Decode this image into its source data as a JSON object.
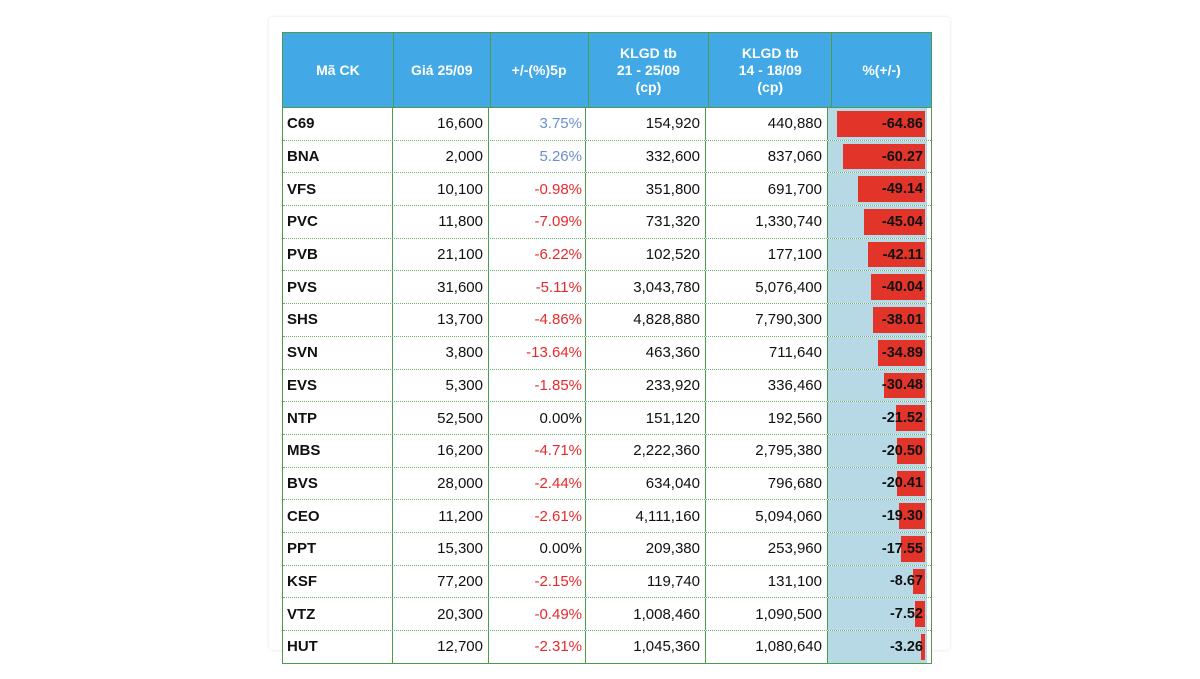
{
  "chart_data": {
    "type": "table",
    "columns": [
      "Mã CK",
      "Giá 25/09",
      "+/-(%)5p",
      "KLGD tb\n21 - 25/09\n(cp)",
      "KLGD tb\n14 - 18/09\n(cp)",
      "%(+/-)"
    ],
    "rows": [
      {
        "code": "C69",
        "price": "16,600",
        "chg5": "3.75%",
        "vol1": "154,920",
        "vol2": "440,880",
        "pct": "-64.86",
        "pct_value": -64.86,
        "chg_color": "#6a8fd0"
      },
      {
        "code": "BNA",
        "price": "2,000",
        "chg5": "5.26%",
        "vol1": "332,600",
        "vol2": "837,060",
        "pct": "-60.27",
        "pct_value": -60.27,
        "chg_color": "#6a8fd0"
      },
      {
        "code": "VFS",
        "price": "10,100",
        "chg5": "-0.98%",
        "vol1": "351,800",
        "vol2": "691,700",
        "pct": "-49.14",
        "pct_value": -49.14,
        "chg_color": "#e8292b"
      },
      {
        "code": "PVC",
        "price": "11,800",
        "chg5": "-7.09%",
        "vol1": "731,320",
        "vol2": "1,330,740",
        "pct": "-45.04",
        "pct_value": -45.04,
        "chg_color": "#e8292b"
      },
      {
        "code": "PVB",
        "price": "21,100",
        "chg5": "-6.22%",
        "vol1": "102,520",
        "vol2": "177,100",
        "pct": "-42.11",
        "pct_value": -42.11,
        "chg_color": "#e8292b"
      },
      {
        "code": "PVS",
        "price": "31,600",
        "chg5": "-5.11%",
        "vol1": "3,043,780",
        "vol2": "5,076,400",
        "pct": "-40.04",
        "pct_value": -40.04,
        "chg_color": "#e8292b"
      },
      {
        "code": "SHS",
        "price": "13,700",
        "chg5": "-4.86%",
        "vol1": "4,828,880",
        "vol2": "7,790,300",
        "pct": "-38.01",
        "pct_value": -38.01,
        "chg_color": "#e8292b"
      },
      {
        "code": "SVN",
        "price": "3,800",
        "chg5": "-13.64%",
        "vol1": "463,360",
        "vol2": "711,640",
        "pct": "-34.89",
        "pct_value": -34.89,
        "chg_color": "#e8292b"
      },
      {
        "code": "EVS",
        "price": "5,300",
        "chg5": "-1.85%",
        "vol1": "233,920",
        "vol2": "336,460",
        "pct": "-30.48",
        "pct_value": -30.48,
        "chg_color": "#e8292b"
      },
      {
        "code": "NTP",
        "price": "52,500",
        "chg5": "0.00%",
        "vol1": "151,120",
        "vol2": "192,560",
        "pct": "-21.52",
        "pct_value": -21.52,
        "chg_color": "#111111"
      },
      {
        "code": "MBS",
        "price": "16,200",
        "chg5": "-4.71%",
        "vol1": "2,222,360",
        "vol2": "2,795,380",
        "pct": "-20.50",
        "pct_value": -20.5,
        "chg_color": "#e8292b"
      },
      {
        "code": "BVS",
        "price": "28,000",
        "chg5": "-2.44%",
        "vol1": "634,040",
        "vol2": "796,680",
        "pct": "-20.41",
        "pct_value": -20.41,
        "chg_color": "#e8292b"
      },
      {
        "code": "CEO",
        "price": "11,200",
        "chg5": "-2.61%",
        "vol1": "4,111,160",
        "vol2": "5,094,060",
        "pct": "-19.30",
        "pct_value": -19.3,
        "chg_color": "#e8292b"
      },
      {
        "code": "PPT",
        "price": "15,300",
        "chg5": "0.00%",
        "vol1": "209,380",
        "vol2": "253,960",
        "pct": "-17.55",
        "pct_value": -17.55,
        "chg_color": "#111111"
      },
      {
        "code": "KSF",
        "price": "77,200",
        "chg5": "-2.15%",
        "vol1": "119,740",
        "vol2": "131,100",
        "pct": "-8.67",
        "pct_value": -8.67,
        "chg_color": "#e8292b"
      },
      {
        "code": "VTZ",
        "price": "20,300",
        "chg5": "-0.49%",
        "vol1": "1,008,460",
        "vol2": "1,090,500",
        "pct": "-7.52",
        "pct_value": -7.52,
        "chg_color": "#e8292b"
      },
      {
        "code": "HUT",
        "price": "12,700",
        "chg5": "-2.31%",
        "vol1": "1,045,360",
        "vol2": "1,080,640",
        "pct": "-3.26",
        "pct_value": -3.26,
        "chg_color": "#e8292b"
      }
    ],
    "bar_scale_max": 70,
    "colors": {
      "header_bg": "#43a9e6",
      "bar_negative": "#e3342a",
      "bar_track": "#b7d9e5",
      "positive_text": "#6a8fd0",
      "negative_text": "#e8292b"
    }
  }
}
